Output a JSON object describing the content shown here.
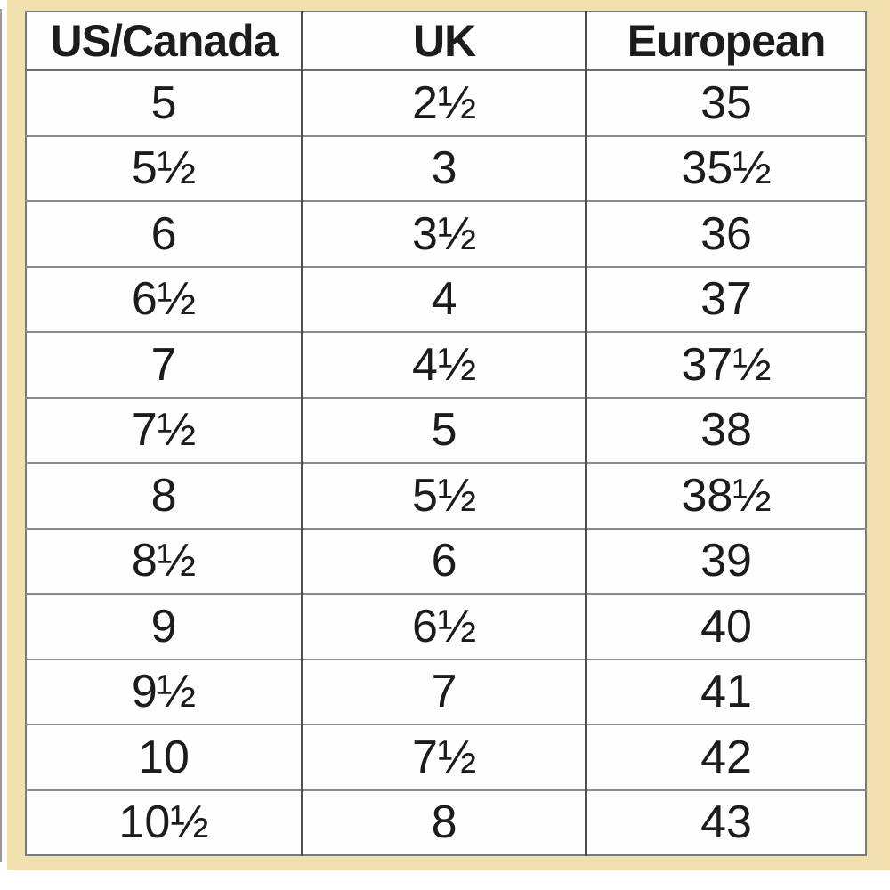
{
  "chart_data": {
    "type": "table",
    "columns": [
      "US/Canada",
      "UK",
      "European"
    ],
    "rows": [
      [
        "5",
        "2½",
        "35"
      ],
      [
        "5½",
        "3",
        "35½"
      ],
      [
        "6",
        "3½",
        "36"
      ],
      [
        "6½",
        "4",
        "37"
      ],
      [
        "7",
        "4½",
        "37½"
      ],
      [
        "7½",
        "5",
        "38"
      ],
      [
        "8",
        "5½",
        "38½"
      ],
      [
        "8½",
        "6",
        "39"
      ],
      [
        "9",
        "6½",
        "40"
      ],
      [
        "9½",
        "7",
        "41"
      ],
      [
        "10",
        "7½",
        "42"
      ],
      [
        "10½",
        "8",
        "43"
      ]
    ]
  },
  "colors": {
    "background": "#ffffff",
    "frame": "#f0e1ae",
    "table_border": "#7a7a7a",
    "grid_vertical": "#4f4f4f",
    "grid_horizontal": "#8b8b8b",
    "text": "#1c1c1c"
  }
}
